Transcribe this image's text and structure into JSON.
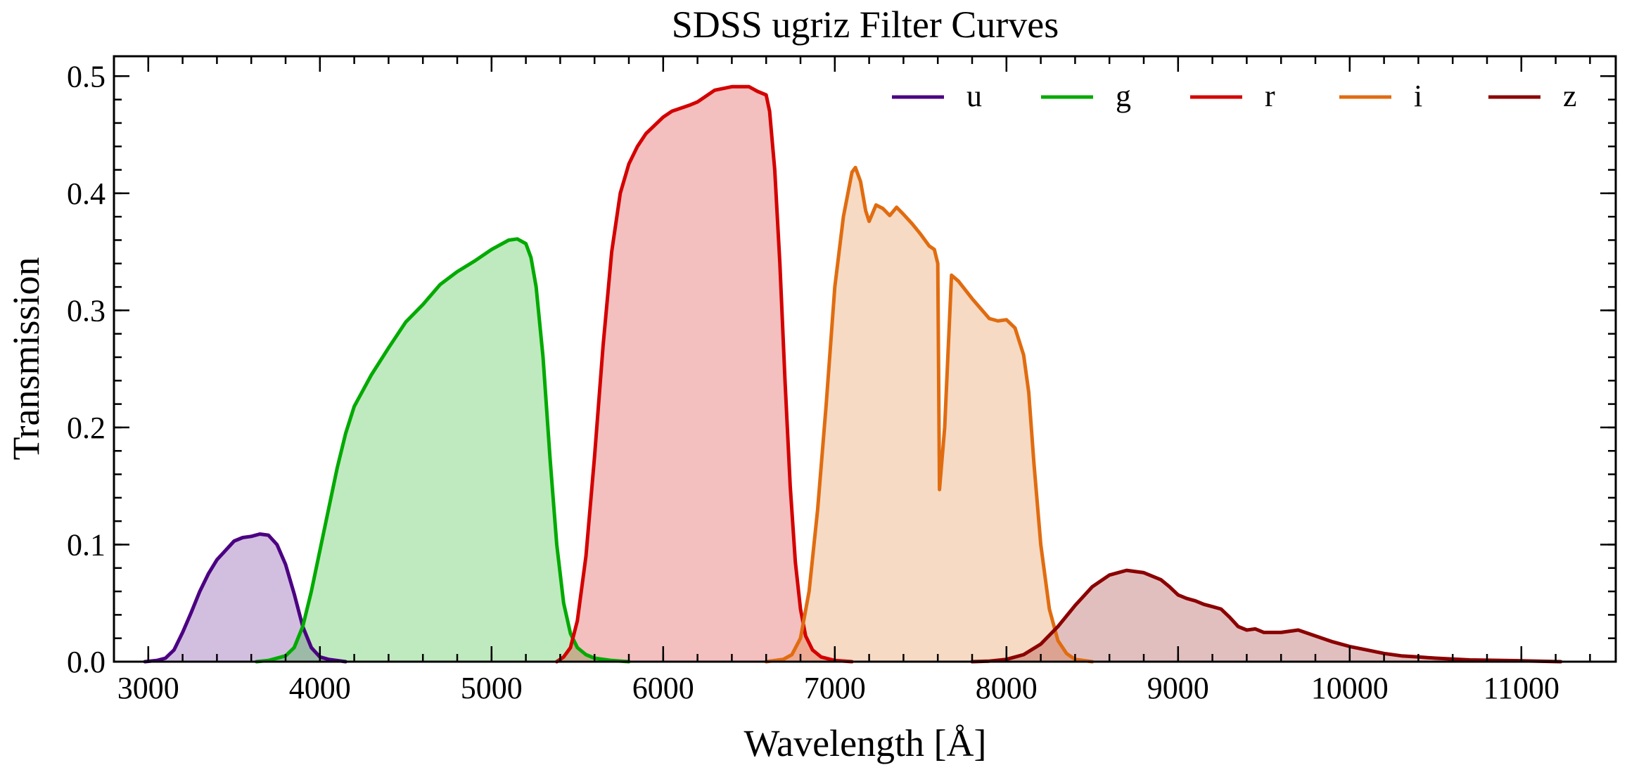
{
  "chart_data": {
    "type": "area",
    "title": "SDSS ugriz Filter Curves",
    "xlabel": "Wavelength [Å]",
    "ylabel": "Transmission",
    "xlim": [
      2800,
      11550
    ],
    "ylim": [
      0,
      0.517
    ],
    "xticks": [
      3000,
      4000,
      5000,
      6000,
      7000,
      8000,
      9000,
      10000,
      11000
    ],
    "xtick_labels": [
      "3000",
      "4000",
      "5000",
      "6000",
      "7000",
      "8000",
      "9000",
      "10000",
      "11000"
    ],
    "yticks": [
      0.0,
      0.1,
      0.2,
      0.3,
      0.4,
      0.5
    ],
    "ytick_labels": [
      "0.0",
      "0.1",
      "0.2",
      "0.3",
      "0.4",
      "0.5"
    ],
    "x_minor_step": 200,
    "y_minor_step": 0.02,
    "grid": false,
    "legend_position": "top-right",
    "fill_opacity": 0.25,
    "series": [
      {
        "name": "u",
        "color": "#4b0082",
        "points": [
          [
            2980,
            0.0
          ],
          [
            3050,
            0.001
          ],
          [
            3100,
            0.003
          ],
          [
            3150,
            0.01
          ],
          [
            3200,
            0.025
          ],
          [
            3250,
            0.042
          ],
          [
            3300,
            0.06
          ],
          [
            3350,
            0.075
          ],
          [
            3400,
            0.087
          ],
          [
            3450,
            0.095
          ],
          [
            3500,
            0.103
          ],
          [
            3550,
            0.106
          ],
          [
            3600,
            0.107
          ],
          [
            3650,
            0.109
          ],
          [
            3700,
            0.108
          ],
          [
            3750,
            0.1
          ],
          [
            3800,
            0.083
          ],
          [
            3850,
            0.058
          ],
          [
            3900,
            0.03
          ],
          [
            3950,
            0.012
          ],
          [
            4000,
            0.004
          ],
          [
            4050,
            0.002
          ],
          [
            4100,
            0.001
          ],
          [
            4150,
            0.0
          ]
        ]
      },
      {
        "name": "g",
        "color": "#00aa00",
        "points": [
          [
            3630,
            0.0
          ],
          [
            3700,
            0.001
          ],
          [
            3800,
            0.005
          ],
          [
            3850,
            0.012
          ],
          [
            3900,
            0.03
          ],
          [
            3950,
            0.06
          ],
          [
            4000,
            0.095
          ],
          [
            4050,
            0.13
          ],
          [
            4100,
            0.165
          ],
          [
            4150,
            0.195
          ],
          [
            4200,
            0.218
          ],
          [
            4300,
            0.245
          ],
          [
            4400,
            0.268
          ],
          [
            4500,
            0.29
          ],
          [
            4600,
            0.305
          ],
          [
            4700,
            0.322
          ],
          [
            4800,
            0.333
          ],
          [
            4900,
            0.342
          ],
          [
            5000,
            0.352
          ],
          [
            5100,
            0.36
          ],
          [
            5150,
            0.361
          ],
          [
            5200,
            0.357
          ],
          [
            5230,
            0.345
          ],
          [
            5260,
            0.32
          ],
          [
            5300,
            0.26
          ],
          [
            5340,
            0.175
          ],
          [
            5380,
            0.1
          ],
          [
            5420,
            0.05
          ],
          [
            5460,
            0.024
          ],
          [
            5500,
            0.012
          ],
          [
            5550,
            0.006
          ],
          [
            5600,
            0.003
          ],
          [
            5700,
            0.001
          ],
          [
            5800,
            0.0
          ]
        ]
      },
      {
        "name": "r",
        "color": "#d40000",
        "points": [
          [
            5380,
            0.0
          ],
          [
            5420,
            0.004
          ],
          [
            5460,
            0.012
          ],
          [
            5500,
            0.035
          ],
          [
            5550,
            0.09
          ],
          [
            5600,
            0.175
          ],
          [
            5650,
            0.27
          ],
          [
            5700,
            0.35
          ],
          [
            5750,
            0.4
          ],
          [
            5800,
            0.425
          ],
          [
            5850,
            0.44
          ],
          [
            5900,
            0.451
          ],
          [
            6000,
            0.465
          ],
          [
            6050,
            0.47
          ],
          [
            6150,
            0.475
          ],
          [
            6200,
            0.478
          ],
          [
            6300,
            0.488
          ],
          [
            6400,
            0.491
          ],
          [
            6500,
            0.491
          ],
          [
            6550,
            0.487
          ],
          [
            6600,
            0.484
          ],
          [
            6620,
            0.47
          ],
          [
            6650,
            0.42
          ],
          [
            6680,
            0.34
          ],
          [
            6710,
            0.24
          ],
          [
            6740,
            0.15
          ],
          [
            6770,
            0.085
          ],
          [
            6800,
            0.045
          ],
          [
            6830,
            0.022
          ],
          [
            6870,
            0.01
          ],
          [
            6920,
            0.004
          ],
          [
            7000,
            0.001
          ],
          [
            7100,
            0.0
          ]
        ]
      },
      {
        "name": "i",
        "color": "#e06c10",
        "points": [
          [
            6600,
            0.0
          ],
          [
            6700,
            0.002
          ],
          [
            6750,
            0.006
          ],
          [
            6800,
            0.02
          ],
          [
            6850,
            0.06
          ],
          [
            6900,
            0.13
          ],
          [
            6950,
            0.22
          ],
          [
            7000,
            0.32
          ],
          [
            7050,
            0.38
          ],
          [
            7100,
            0.418
          ],
          [
            7120,
            0.422
          ],
          [
            7150,
            0.41
          ],
          [
            7180,
            0.385
          ],
          [
            7200,
            0.376
          ],
          [
            7240,
            0.39
          ],
          [
            7280,
            0.387
          ],
          [
            7320,
            0.381
          ],
          [
            7360,
            0.388
          ],
          [
            7400,
            0.382
          ],
          [
            7450,
            0.374
          ],
          [
            7500,
            0.365
          ],
          [
            7550,
            0.355
          ],
          [
            7580,
            0.352
          ],
          [
            7600,
            0.34
          ],
          [
            7610,
            0.147
          ],
          [
            7640,
            0.2
          ],
          [
            7680,
            0.33
          ],
          [
            7720,
            0.325
          ],
          [
            7800,
            0.31
          ],
          [
            7900,
            0.293
          ],
          [
            7950,
            0.291
          ],
          [
            8000,
            0.292
          ],
          [
            8050,
            0.285
          ],
          [
            8100,
            0.262
          ],
          [
            8130,
            0.23
          ],
          [
            8160,
            0.17
          ],
          [
            8200,
            0.1
          ],
          [
            8250,
            0.045
          ],
          [
            8300,
            0.018
          ],
          [
            8350,
            0.007
          ],
          [
            8400,
            0.002
          ],
          [
            8500,
            0.0
          ]
        ]
      },
      {
        "name": "z",
        "color": "#8b0000",
        "points": [
          [
            7800,
            0.0
          ],
          [
            7900,
            0.0005
          ],
          [
            8000,
            0.002
          ],
          [
            8100,
            0.006
          ],
          [
            8200,
            0.015
          ],
          [
            8300,
            0.03
          ],
          [
            8400,
            0.048
          ],
          [
            8500,
            0.064
          ],
          [
            8600,
            0.074
          ],
          [
            8700,
            0.078
          ],
          [
            8800,
            0.076
          ],
          [
            8900,
            0.07
          ],
          [
            8950,
            0.064
          ],
          [
            9000,
            0.057
          ],
          [
            9050,
            0.054
          ],
          [
            9100,
            0.052
          ],
          [
            9150,
            0.049
          ],
          [
            9200,
            0.047
          ],
          [
            9250,
            0.045
          ],
          [
            9300,
            0.038
          ],
          [
            9350,
            0.03
          ],
          [
            9400,
            0.027
          ],
          [
            9450,
            0.028
          ],
          [
            9500,
            0.025
          ],
          [
            9600,
            0.025
          ],
          [
            9700,
            0.027
          ],
          [
            9800,
            0.022
          ],
          [
            9900,
            0.017
          ],
          [
            10000,
            0.013
          ],
          [
            10100,
            0.01
          ],
          [
            10200,
            0.007
          ],
          [
            10300,
            0.005
          ],
          [
            10400,
            0.004
          ],
          [
            10500,
            0.003
          ],
          [
            10700,
            0.0015
          ],
          [
            11000,
            0.0008
          ],
          [
            11230,
            0.0
          ]
        ]
      }
    ]
  }
}
